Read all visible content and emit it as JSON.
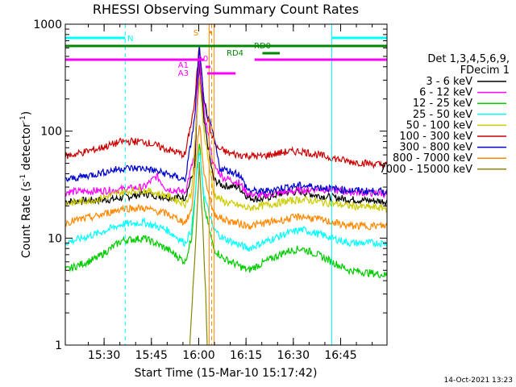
{
  "chart_data": {
    "type": "line",
    "title": "RHESSI Observing Summary Count Rates",
    "xlabel": "Start Time (15-Mar-10 15:17:42)",
    "ylabel_parts": [
      "Count Rate (s",
      "-1",
      " detector",
      "-1",
      ")"
    ],
    "yscale": "log",
    "ylim": [
      1,
      1000
    ],
    "xlim_minutes": [
      0,
      102
    ],
    "x_ticks": [
      {
        "label": "15:30",
        "t": 12.3
      },
      {
        "label": "15:45",
        "t": 27.3
      },
      {
        "label": "16:00",
        "t": 42.3
      },
      {
        "label": "16:15",
        "t": 57.3
      },
      {
        "label": "16:30",
        "t": 72.3
      },
      {
        "label": "16:45",
        "t": 87.3
      }
    ],
    "y_ticks": [
      {
        "label": "1",
        "v": 1
      },
      {
        "label": "10",
        "v": 10
      },
      {
        "label": "100",
        "v": 100
      },
      {
        "label": "1000",
        "v": 1000
      }
    ],
    "legend_header": [
      "Det 1,3,4,5,6,9,",
      "FDecim 1"
    ],
    "series": [
      {
        "name": "3 - 6 keV",
        "color": "#000000",
        "points": [
          [
            0,
            22
          ],
          [
            15,
            23
          ],
          [
            25,
            26
          ],
          [
            33,
            24
          ],
          [
            38,
            24
          ],
          [
            41,
            45
          ],
          [
            42.5,
            420
          ],
          [
            44,
            120
          ],
          [
            47,
            35
          ],
          [
            50,
            31
          ],
          [
            55,
            30
          ],
          [
            58,
            24
          ],
          [
            62,
            23
          ],
          [
            70,
            27
          ],
          [
            75,
            27
          ],
          [
            80,
            25
          ],
          [
            90,
            23
          ],
          [
            102,
            22
          ]
        ]
      },
      {
        "name": "6 - 12 keV",
        "color": "#ff00ff",
        "points": [
          [
            0,
            27
          ],
          [
            15,
            28
          ],
          [
            25,
            30
          ],
          [
            29,
            38
          ],
          [
            32,
            29
          ],
          [
            38,
            27
          ],
          [
            41,
            60
          ],
          [
            42.5,
            480
          ],
          [
            44,
            150
          ],
          [
            47,
            48
          ],
          [
            50,
            37
          ],
          [
            55,
            33
          ],
          [
            58,
            26
          ],
          [
            62,
            25
          ],
          [
            70,
            27
          ],
          [
            75,
            28
          ],
          [
            80,
            29
          ],
          [
            90,
            27
          ],
          [
            102,
            26
          ]
        ]
      },
      {
        "name": "12 - 25 keV",
        "color": "#00cc00",
        "points": [
          [
            0,
            5
          ],
          [
            10,
            6.5
          ],
          [
            18,
            9.5
          ],
          [
            25,
            10
          ],
          [
            32,
            8
          ],
          [
            38,
            6
          ],
          [
            40,
            10
          ],
          [
            42.5,
            80
          ],
          [
            44,
            20
          ],
          [
            47,
            8
          ],
          [
            50,
            6.5
          ],
          [
            58,
            5
          ],
          [
            70,
            7.5
          ],
          [
            75,
            8
          ],
          [
            80,
            7
          ],
          [
            90,
            5
          ],
          [
            102,
            4.5
          ]
        ]
      },
      {
        "name": "25 - 50 keV",
        "color": "#00ffff",
        "points": [
          [
            0,
            9
          ],
          [
            10,
            11
          ],
          [
            18,
            13.5
          ],
          [
            25,
            14
          ],
          [
            32,
            12
          ],
          [
            38,
            9
          ],
          [
            40,
            12
          ],
          [
            42.5,
            65
          ],
          [
            44,
            25
          ],
          [
            47,
            12
          ],
          [
            50,
            10
          ],
          [
            58,
            8
          ],
          [
            70,
            11
          ],
          [
            75,
            12
          ],
          [
            80,
            11
          ],
          [
            90,
            9
          ],
          [
            102,
            9
          ]
        ]
      },
      {
        "name": "50 - 100 keV",
        "color": "#cccc00",
        "points": [
          [
            0,
            21
          ],
          [
            10,
            23
          ],
          [
            18,
            27
          ],
          [
            25,
            28
          ],
          [
            32,
            25
          ],
          [
            38,
            21
          ],
          [
            40,
            26
          ],
          [
            42.5,
            300
          ],
          [
            44,
            100
          ],
          [
            47,
            26
          ],
          [
            50,
            22
          ],
          [
            58,
            19
          ],
          [
            70,
            22
          ],
          [
            75,
            23
          ],
          [
            80,
            22
          ],
          [
            90,
            20
          ],
          [
            102,
            19
          ]
        ]
      },
      {
        "name": "100 - 300 keV",
        "color": "#cc0000",
        "points": [
          [
            0,
            58
          ],
          [
            10,
            68
          ],
          [
            18,
            80
          ],
          [
            25,
            80
          ],
          [
            32,
            68
          ],
          [
            38,
            60
          ],
          [
            41,
            180
          ],
          [
            42.5,
            650
          ],
          [
            44,
            200
          ],
          [
            46,
            100
          ],
          [
            48,
            70
          ],
          [
            52,
            62
          ],
          [
            55,
            60
          ],
          [
            58,
            59
          ],
          [
            62,
            58
          ],
          [
            70,
            64
          ],
          [
            75,
            65
          ],
          [
            80,
            60
          ],
          [
            90,
            52
          ],
          [
            102,
            48
          ]
        ]
      },
      {
        "name": "300 - 800 keV",
        "color": "#0000cc",
        "points": [
          [
            0,
            35
          ],
          [
            10,
            40
          ],
          [
            18,
            45
          ],
          [
            25,
            45
          ],
          [
            32,
            40
          ],
          [
            38,
            35
          ],
          [
            41,
            130
          ],
          [
            42.5,
            600
          ],
          [
            44,
            180
          ],
          [
            47,
            90
          ],
          [
            49,
            45
          ],
          [
            55,
            40
          ],
          [
            58,
            28
          ],
          [
            62,
            27
          ],
          [
            70,
            30
          ],
          [
            75,
            31
          ],
          [
            80,
            30
          ],
          [
            90,
            28
          ],
          [
            102,
            27
          ]
        ]
      },
      {
        "name": "800 - 7000 keV",
        "color": "#ff8800",
        "points": [
          [
            0,
            14
          ],
          [
            10,
            16
          ],
          [
            18,
            19
          ],
          [
            25,
            19
          ],
          [
            32,
            17
          ],
          [
            38,
            14
          ],
          [
            40,
            18
          ],
          [
            42.5,
            120
          ],
          [
            44,
            40
          ],
          [
            47,
            17
          ],
          [
            50,
            15
          ],
          [
            58,
            13
          ],
          [
            70,
            15
          ],
          [
            75,
            16
          ],
          [
            80,
            15
          ],
          [
            90,
            13
          ],
          [
            102,
            13
          ]
        ]
      },
      {
        "name": "7000 - 15000 keV",
        "color": "#888800",
        "points": [
          [
            39.5,
            1
          ],
          [
            40,
            2
          ],
          [
            41,
            6
          ],
          [
            42.5,
            50
          ],
          [
            43.5,
            15
          ],
          [
            44.5,
            3
          ],
          [
            45,
            1
          ]
        ]
      }
    ],
    "state_bars": [
      {
        "label": "N",
        "color": "#00ffff",
        "segments": [
          [
            0,
            19
          ]
        ]
      },
      {
        "label": "",
        "color": "#00ffff",
        "segments": [
          [
            84.5,
            102
          ]
        ]
      },
      {
        "label": "RD0",
        "color": "#008800",
        "segments": [
          [
            0,
            102
          ]
        ]
      },
      {
        "label": "RD4",
        "color": "#008800",
        "segments": [
          [
            62.5,
            68
          ]
        ]
      },
      {
        "label": "",
        "color": "#ff00ff",
        "segments": [
          [
            0,
            43
          ],
          [
            60,
            102
          ]
        ]
      },
      {
        "label": "A0",
        "color": "#ff00ff",
        "segments": [
          [
            43,
            44
          ]
        ]
      },
      {
        "label": "A1",
        "color": "#ff00ff",
        "segments": [
          [
            44.5,
            46
          ]
        ]
      },
      {
        "label": "A3",
        "color": "#ff00ff",
        "segments": [
          [
            45,
            54
          ]
        ]
      },
      {
        "label": "S",
        "color": "#ff8800",
        "segments": [
          [
            45.5,
            46.5
          ]
        ]
      }
    ],
    "flag_markers": [
      {
        "label": "A3",
        "color": "#ff00ff"
      },
      {
        "label": "A1",
        "color": "#ff00ff"
      },
      {
        "label": "A0",
        "color": "#ff00ff"
      },
      {
        "label": "S",
        "color": "#ff8800"
      },
      {
        "label": "N",
        "color": "#00ffff"
      },
      {
        "label": "RD4",
        "color": "#008800"
      },
      {
        "label": "RD0",
        "color": "#008800"
      }
    ],
    "vlines": [
      {
        "t": 0,
        "color": "#00ffff",
        "dashed": false
      },
      {
        "t": 19,
        "color": "#00ffff",
        "dashed": true
      },
      {
        "t": 84.5,
        "color": "#00ffff",
        "dashed": false
      },
      {
        "t": 102,
        "color": "#00ffff",
        "dashed": true
      },
      {
        "t": 45.6,
        "color": "#ff8800",
        "dashed": false
      },
      {
        "t": 46.4,
        "color": "#ff8800",
        "dashed": true
      },
      {
        "t": 47.2,
        "color": "#ff8800",
        "dashed": false
      }
    ],
    "timestamp": "14-Oct-2021 13:23"
  }
}
